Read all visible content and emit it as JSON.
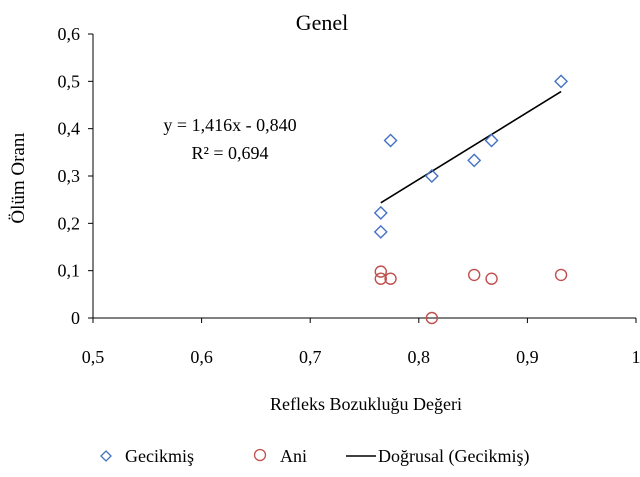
{
  "chart_data": {
    "type": "scatter",
    "title": "Genel",
    "xlabel": "Refleks Bozukluğu Değeri",
    "ylabel": "Ölüm Oranı",
    "xlim": [
      0.5,
      1.0
    ],
    "ylim": [
      0,
      0.6
    ],
    "xticks": [
      0.5,
      0.6,
      0.7,
      0.8,
      0.9,
      1.0
    ],
    "xtick_labels": [
      "0,5",
      "0,6",
      "0,7",
      "0,8",
      "0,9",
      "1"
    ],
    "yticks": [
      0,
      0.1,
      0.2,
      0.3,
      0.4,
      0.5,
      0.6
    ],
    "ytick_labels": [
      "0",
      "0,1",
      "0,2",
      "0,3",
      "0,4",
      "0,5",
      "0,6"
    ],
    "grid": false,
    "legend_position": "bottom",
    "series": [
      {
        "name": "Gecikmiş",
        "marker": "diamond",
        "color": "#4472C4",
        "points": [
          {
            "x": 0.765,
            "y": 0.222
          },
          {
            "x": 0.765,
            "y": 0.182
          },
          {
            "x": 0.774,
            "y": 0.375
          },
          {
            "x": 0.812,
            "y": 0.3
          },
          {
            "x": 0.851,
            "y": 0.333
          },
          {
            "x": 0.867,
            "y": 0.375
          },
          {
            "x": 0.931,
            "y": 0.5
          }
        ]
      },
      {
        "name": "Ani",
        "marker": "circle",
        "color": "#C0504D",
        "points": [
          {
            "x": 0.765,
            "y": 0.098
          },
          {
            "x": 0.765,
            "y": 0.083
          },
          {
            "x": 0.774,
            "y": 0.083
          },
          {
            "x": 0.812,
            "y": 0.0
          },
          {
            "x": 0.851,
            "y": 0.091
          },
          {
            "x": 0.867,
            "y": 0.083
          },
          {
            "x": 0.931,
            "y": 0.091
          }
        ]
      }
    ],
    "trendline": {
      "name": "Doğrusal (Gecikmiş)",
      "color": "#000000",
      "slope": 1.416,
      "intercept": -0.84,
      "x_range": [
        0.765,
        0.931
      ]
    },
    "annotations": {
      "equation": "y = 1,416x - 0,840",
      "r_squared": "R² = 0,694"
    }
  }
}
